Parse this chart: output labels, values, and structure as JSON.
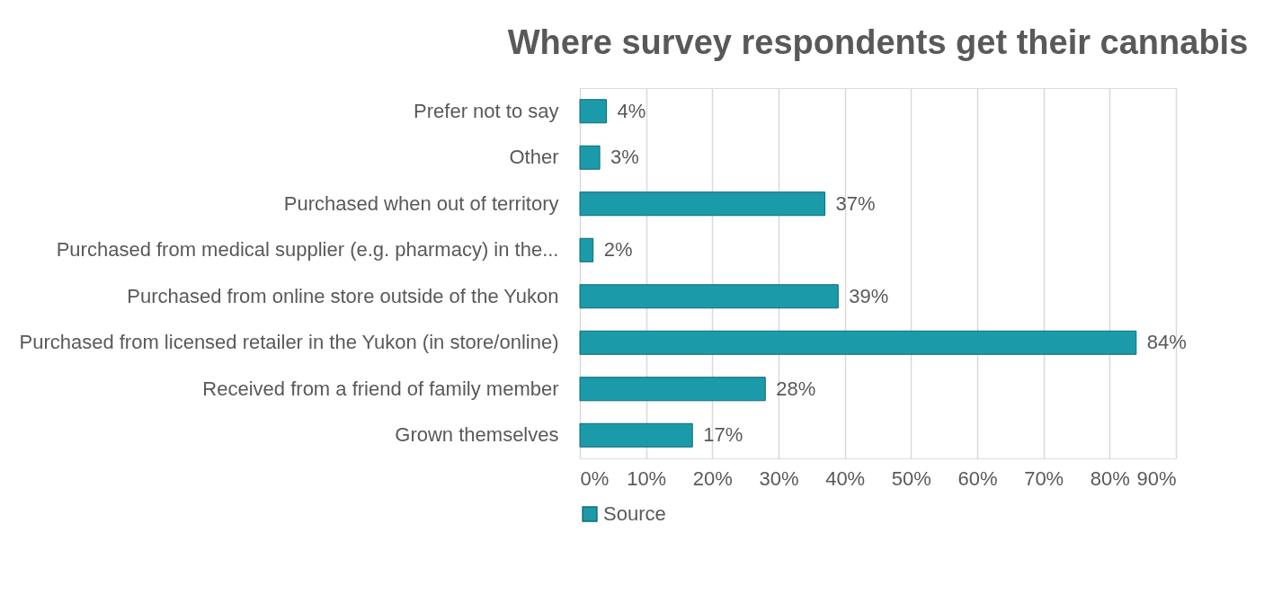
{
  "chart_data": {
    "type": "bar",
    "orientation": "horizontal",
    "title": "Where survey respondents get their cannabis",
    "categories": [
      "Prefer not to say",
      "Other",
      "Purchased when out of territory",
      "Purchased from medical supplier (e.g. pharmacy) in the...",
      "Purchased from online store outside of the Yukon",
      "Purchased from licensed retailer in the Yukon (in store/online)",
      "Received from a friend of family member",
      "Grown themselves"
    ],
    "series": [
      {
        "name": "Source",
        "color": "#1b9aaa",
        "values": [
          4,
          3,
          37,
          2,
          39,
          84,
          28,
          17
        ],
        "value_labels": [
          "4%",
          "3%",
          "37%",
          "2%",
          "39%",
          "84%",
          "28%",
          "17%"
        ]
      }
    ],
    "xlim": [
      0,
      90
    ],
    "xticks": [
      {
        "value": 0,
        "label": "0%"
      },
      {
        "value": 10,
        "label": "10%"
      },
      {
        "value": 20,
        "label": "20%"
      },
      {
        "value": 30,
        "label": "30%"
      },
      {
        "value": 40,
        "label": "40%"
      },
      {
        "value": 50,
        "label": "50%"
      },
      {
        "value": 60,
        "label": "60%"
      },
      {
        "value": 70,
        "label": "70%"
      },
      {
        "value": 80,
        "label": "80%"
      },
      {
        "value": 90,
        "label": "90%"
      }
    ],
    "grid": "x",
    "legend": "bottom"
  }
}
